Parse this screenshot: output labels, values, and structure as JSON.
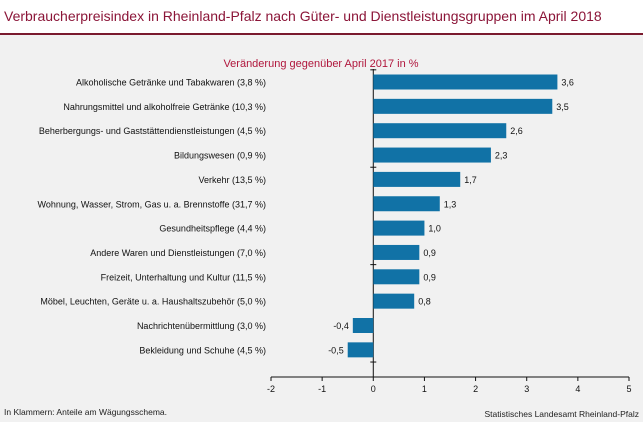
{
  "title": "Verbraucherpreisindex in Rheinland-Pfalz nach Güter- und Dienstleistungsgruppen im April 2018",
  "footnote": "In Klammern: Anteile am Wägungsschema.",
  "source": "Statistisches Landesamt Rheinland-Pfalz",
  "colors": {
    "bar": "#1172a6",
    "title": "#8b1538",
    "subtitle": "#b0163c",
    "rule": "#7a1a2e",
    "background": "#f1f1f1"
  },
  "chart_data": {
    "type": "bar",
    "orientation": "horizontal",
    "title": "Veränderung gegenüber April 2017 in %",
    "categories": [
      "Alkoholische Getränke und Tabakwaren (3,8 %)",
      "Nahrungsmittel und alkoholfreie Getränke (10,3 %)",
      "Beherbergungs- und Gaststättendienstleistungen (4,5 %)",
      "Bildungswesen (0,9 %)",
      "Verkehr (13,5 %)",
      "Wohnung, Wasser, Strom, Gas u. a. Brennstoffe (31,7 %)",
      "Gesundheitspflege (4,4 %)",
      "Andere Waren und Dienstleistungen (7,0 %)",
      "Freizeit, Unterhaltung und Kultur (11,5 %)",
      "Möbel, Leuchten, Geräte u. a. Haushaltszubehör  (5,0 %)",
      "Nachrichtenübermittlung (3,0 %)",
      "Bekleidung und Schuhe (4,5 %)"
    ],
    "values": [
      3.6,
      3.5,
      2.6,
      2.3,
      1.7,
      1.3,
      1.0,
      0.9,
      0.9,
      0.8,
      -0.4,
      -0.5
    ],
    "value_labels": [
      "3,6",
      "3,5",
      "2,6",
      "2,3",
      "1,7",
      "1,3",
      "1,0",
      "0,9",
      "0,9",
      "0,8",
      "-0,4",
      "-0,5"
    ],
    "xlim": [
      -2,
      5
    ],
    "xticks": [
      -2,
      -1,
      0,
      1,
      2,
      3,
      4,
      5
    ],
    "xtick_labels": [
      "-2",
      "-1",
      "0",
      "1",
      "2",
      "3",
      "4",
      "5"
    ],
    "xlabel": "",
    "ylabel": "",
    "grid": false,
    "legend": "none"
  }
}
